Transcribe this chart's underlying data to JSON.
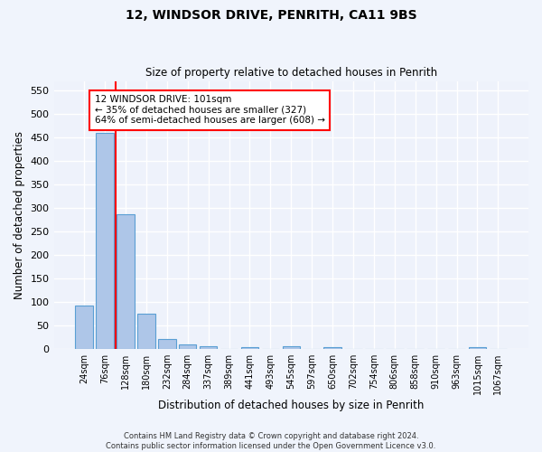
{
  "title": "12, WINDSOR DRIVE, PENRITH, CA11 9BS",
  "subtitle": "Size of property relative to detached houses in Penrith",
  "xlabel": "Distribution of detached houses by size in Penrith",
  "ylabel": "Number of detached properties",
  "bin_labels": [
    "24sqm",
    "76sqm",
    "128sqm",
    "180sqm",
    "232sqm",
    "284sqm",
    "337sqm",
    "389sqm",
    "441sqm",
    "493sqm",
    "545sqm",
    "597sqm",
    "650sqm",
    "702sqm",
    "754sqm",
    "806sqm",
    "858sqm",
    "910sqm",
    "963sqm",
    "1015sqm",
    "1067sqm"
  ],
  "bar_heights": [
    93,
    460,
    286,
    76,
    22,
    10,
    6,
    0,
    5,
    0,
    6,
    0,
    5,
    0,
    0,
    0,
    0,
    0,
    0,
    5,
    0
  ],
  "bar_color": "#aec6e8",
  "bar_edge_color": "#5a9fd4",
  "red_line_x": 1.5,
  "annotation_text": "12 WINDSOR DRIVE: 101sqm\n← 35% of detached houses are smaller (327)\n64% of semi-detached houses are larger (608) →",
  "ylim": [
    0,
    570
  ],
  "yticks": [
    0,
    50,
    100,
    150,
    200,
    250,
    300,
    350,
    400,
    450,
    500,
    550
  ],
  "background_color": "#eef2fb",
  "grid_color": "#ffffff",
  "footnote": "Contains HM Land Registry data © Crown copyright and database right 2024.\nContains public sector information licensed under the Open Government Licence v3.0."
}
